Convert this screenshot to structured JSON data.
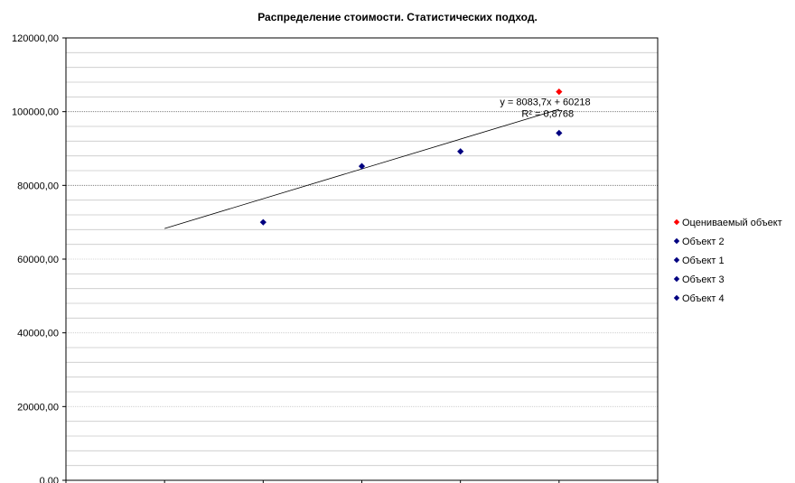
{
  "chart_data": {
    "type": "scatter",
    "title": "Распределение стоимости. Статистических подход.",
    "xlabel": "",
    "ylabel": "",
    "xlim": [
      0,
      6
    ],
    "ylim": [
      0,
      120000
    ],
    "y_ticks": [
      "0,00",
      "20000,00",
      "40000,00",
      "60000,00",
      "80000,00",
      "100000,00",
      "120000,00"
    ],
    "y_tick_values": [
      0,
      20000,
      40000,
      60000,
      80000,
      100000,
      120000
    ],
    "major_gridlines": [
      80000,
      100000
    ],
    "minor_grid_step": 4000,
    "grid": true,
    "legend_position": "right",
    "series": [
      {
        "name": "Оцениваемый объект",
        "color": "#ff0000",
        "points": [
          [
            5,
            105400
          ]
        ]
      },
      {
        "name": "Объект 2",
        "color": "#000080",
        "points": [
          [
            2,
            70000
          ]
        ]
      },
      {
        "name": "Объект 1",
        "color": "#000080",
        "points": [
          [
            3,
            85200
          ]
        ]
      },
      {
        "name": "Объект 3",
        "color": "#000080",
        "points": [
          [
            4,
            89200
          ]
        ]
      },
      {
        "name": "Объект 4",
        "color": "#000080",
        "points": [
          [
            5,
            94200
          ]
        ]
      }
    ],
    "trendline": {
      "type": "linear",
      "equation": "y = 8083,7x + 60218",
      "r_squared": "R² = 0,8768",
      "slope": 8083.7,
      "intercept": 60218,
      "x_range": [
        1,
        5
      ],
      "color": "#000000"
    }
  }
}
